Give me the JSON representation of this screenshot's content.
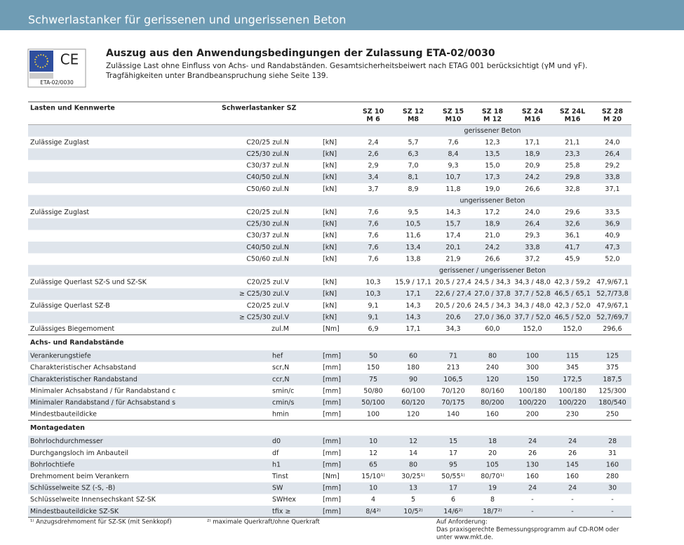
{
  "header": {
    "title": "Schwerlastanker für gerissenen und ungerissenen Beton"
  },
  "logo": {
    "mark": "CE",
    "approval": "ETA-02/0030"
  },
  "intro": {
    "heading": "Auszug aus den Anwendungsbedingungen der Zulassung ETA-02/0030",
    "lines": [
      "Zulässige Last ohne Einfluss von Achs- und Randabständen. Gesamtsicherheitsbeiwert nach ETAG 001 berücksichtigt (γM und γF).",
      "Tragfähigkeiten unter Brandbeanspruchung siehe Seite 139."
    ]
  },
  "table": {
    "headers": [
      "Lasten und Kennwerte",
      "Schwerlastanker SZ"
    ],
    "columns": [
      {
        "name": "SZ 10",
        "thread": "M 6"
      },
      {
        "name": "SZ 12",
        "thread": "M8"
      },
      {
        "name": "SZ 15",
        "thread": "M10"
      },
      {
        "name": "SZ 18",
        "thread": "M 12"
      },
      {
        "name": "SZ 24",
        "thread": "M16"
      },
      {
        "name": "SZ 24L",
        "thread": "M16"
      },
      {
        "name": "SZ 28",
        "thread": "M 20"
      }
    ],
    "blocks": [
      {
        "condition": "gerissener Beton",
        "rows": [
          [
            "Zulässige Zuglast",
            "C20/25  zul.N",
            "[kN]",
            "2,4",
            "5,7",
            "7,6",
            "12,3",
            "17,1",
            "21,1",
            "24,0"
          ],
          [
            null,
            "C25/30  zul.N",
            "[kN]",
            "2,6",
            "6,3",
            "8,4",
            "13,5",
            "18,9",
            "23,3",
            "26,4"
          ],
          [
            null,
            "C30/37  zul.N",
            "[kN]",
            "2,9",
            "7,0",
            "9,3",
            "15,0",
            "20,9",
            "25,8",
            "29,2"
          ],
          [
            null,
            "C40/50  zul.N",
            "[kN]",
            "3,4",
            "8,1",
            "10,7",
            "17,3",
            "24,2",
            "29,8",
            "33,8"
          ],
          [
            null,
            "C50/60  zul.N",
            "[kN]",
            "3,7",
            "8,9",
            "11,8",
            "19,0",
            "26,6",
            "32,8",
            "37,1"
          ]
        ]
      },
      {
        "condition": "ungerissener Beton",
        "rows": [
          [
            "Zulässige Zuglast",
            "C20/25  zul.N",
            "[kN]",
            "7,6",
            "9,5",
            "14,3",
            "17,2",
            "24,0",
            "29,6",
            "33,5"
          ],
          [
            null,
            "C25/30  zul.N",
            "[kN]",
            "7,6",
            "10,5",
            "15,7",
            "18,9",
            "26,4",
            "32,6",
            "36,9"
          ],
          [
            null,
            "C30/37  zul.N",
            "[kN]",
            "7,6",
            "11,6",
            "17,4",
            "21,0",
            "29,3",
            "36,1",
            "40,9"
          ],
          [
            null,
            "C40/50  zul.N",
            "[kN]",
            "7,6",
            "13,4",
            "20,1",
            "24,2",
            "33,8",
            "41,7",
            "47,3"
          ],
          [
            null,
            "C50/60  zul.N",
            "[kN]",
            "7,6",
            "13,8",
            "21,9",
            "26,6",
            "37,2",
            "45,9",
            "52,0"
          ]
        ]
      },
      {
        "condition": "gerissener / ungerissener Beton",
        "rows": [
          [
            "Zulässige Querlast SZ-S und  SZ-SK",
            "C20/25  zul.V",
            "[kN]",
            "10,3",
            "15,9 / 17,1",
            "20,5 / 27,4",
            "24,5 / 34,3",
            "34,3 / 48,0",
            "42,3 / 59,2",
            "47,9/67,1"
          ],
          [
            null,
            "≥ C25/30  zul.V",
            "[kN]",
            "10,3",
            "17,1",
            "22,6 / 27,4",
            "27,0 / 37,8",
            "37,7 / 52,8",
            "46,5 / 65,1",
            "52,7/73,8"
          ],
          [
            "Zulässige Querlast SZ-B",
            "C20/25  zul.V",
            "[kN]",
            "9,1",
            "14,3",
            "20,5 / 20,6",
            "24,5 / 34,3",
            "34,3 / 48,0",
            "42,3 / 52,0",
            "47,9/67,1"
          ],
          [
            null,
            "≥ C25/30  zul.V",
            "[kN]",
            "9,1",
            "14,3",
            "20,6",
            "27,0 / 36,0",
            "37,7 / 52,0",
            "46,5 / 52,0",
            "52,7/69,7"
          ],
          [
            "Zulässiges Biegemoment",
            "zul.M",
            "[Nm]",
            "6,9",
            "17,1",
            "34,3",
            "60,0",
            "152,0",
            "152,0",
            "296,6"
          ]
        ]
      },
      {
        "title": "Achs- und Randabstände",
        "rows": [
          [
            "Verankerungstiefe",
            "hef",
            "[mm]",
            "50",
            "60",
            "71",
            "80",
            "100",
            "115",
            "125"
          ],
          [
            "Charakteristischer Achsabstand",
            "scr,N",
            "[mm]",
            "150",
            "180",
            "213",
            "240",
            "300",
            "345",
            "375"
          ],
          [
            "Charakteristischer Randabstand",
            "ccr,N",
            "[mm]",
            "75",
            "90",
            "106,5",
            "120",
            "150",
            "172,5",
            "187,5"
          ],
          [
            "Minimaler Achsabstand / für Randabstand c",
            "smin/c",
            "[mm]",
            "50/80",
            "60/100",
            "70/120",
            "80/160",
            "100/180",
            "100/180",
            "125/300"
          ],
          [
            "Minimaler Randabstand / für Achsabstand s",
            "cmin/s",
            "[mm]",
            "50/100",
            "60/120",
            "70/175",
            "80/200",
            "100/220",
            "100/220",
            "180/540"
          ],
          [
            "Mindestbauteildicke",
            "hmin",
            "[mm]",
            "100",
            "120",
            "140",
            "160",
            "200",
            "230",
            "250"
          ]
        ]
      },
      {
        "title": "Montagedaten",
        "rows": [
          [
            "Bohrlochdurchmesser",
            "d0",
            "[mm]",
            "10",
            "12",
            "15",
            "18",
            "24",
            "24",
            "28"
          ],
          [
            "Durchgangsloch im Anbauteil",
            "df",
            "[mm]",
            "12",
            "14",
            "17",
            "20",
            "26",
            "26",
            "31"
          ],
          [
            "Bohrlochtiefe",
            "h1",
            "[mm]",
            "65",
            "80",
            "95",
            "105",
            "130",
            "145",
            "160"
          ],
          [
            "Drehmoment beim Verankern",
            "Tinst",
            "[Nm]",
            "15/10¹⁾",
            "30/25¹⁾",
            "50/55¹⁾",
            "80/70¹⁾",
            "160",
            "160",
            "280"
          ],
          [
            "Schlüsselweite SZ (-S, -B)",
            "SW",
            "[mm]",
            "10",
            "13",
            "17",
            "19",
            "24",
            "24",
            "30"
          ],
          [
            "Schlüsselweite Innensechskant SZ-SK",
            "SWHex",
            "[mm]",
            "4",
            "5",
            "6",
            "8",
            "-",
            "-",
            "-"
          ],
          [
            "Mindestbauteildicke SZ-SK",
            "tfix ≥",
            "[mm]",
            "8/4²⁾",
            "10/5²⁾",
            "14/6²⁾",
            "18/7²⁾",
            "-",
            "-",
            "-"
          ]
        ]
      }
    ]
  },
  "footnotes": [
    "¹⁾ Anzugsdrehmoment für SZ-SK (mit Senkkopf)",
    "²⁾ maximale Querkraft/ohne Querkraft"
  ],
  "note": [
    "Auf Anforderung:",
    "Das praxisgerechte Bemessungsprogramm auf CD-ROM oder",
    "unter www.mkt.de."
  ]
}
